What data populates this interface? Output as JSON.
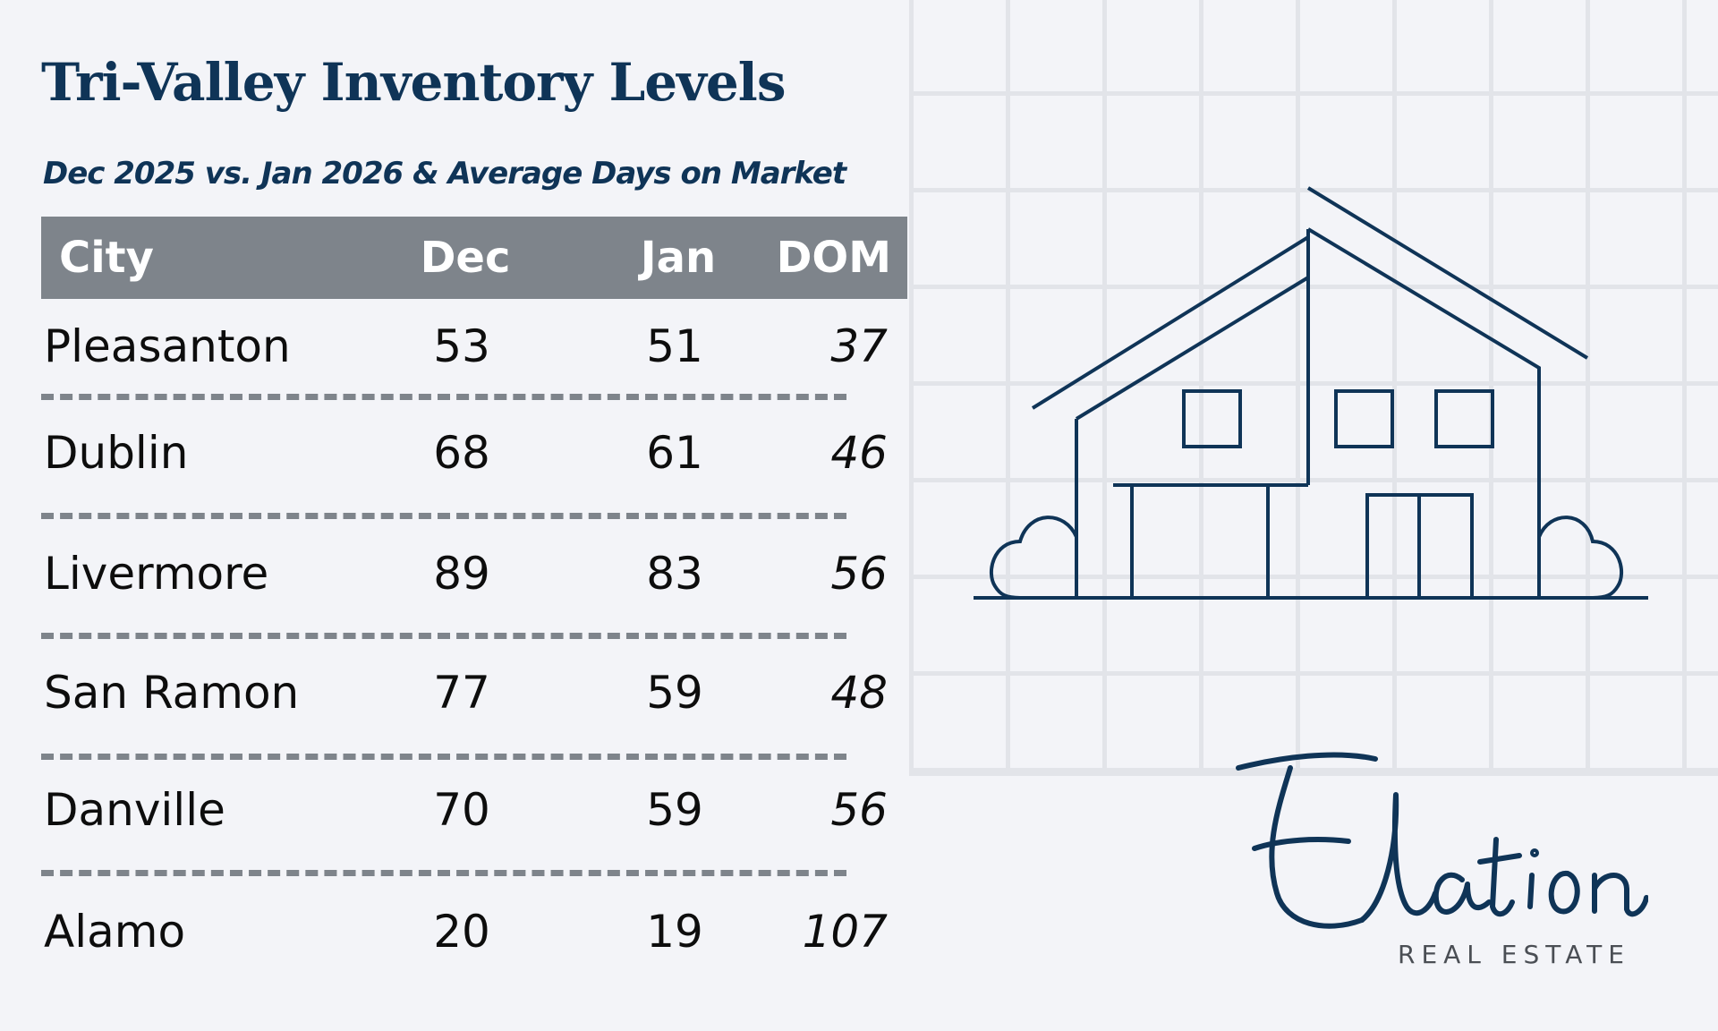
{
  "chart_data": {
    "type": "table",
    "title": "Tri-Valley Inventory Levels",
    "subtitle": "Dec 2025 vs. Jan 2026 & Average Days on Market",
    "columns": [
      "City",
      "Dec",
      "Jan",
      "DOM"
    ],
    "rows": [
      {
        "city": "Pleasanton",
        "dec": "53",
        "jan": "51",
        "dom": "37"
      },
      {
        "city": "Dublin",
        "dec": "68",
        "jan": "61",
        "dom": "46"
      },
      {
        "city": "Livermore",
        "dec": "89",
        "jan": "83",
        "dom": "56"
      },
      {
        "city": "San Ramon",
        "dec": "77",
        "jan": "59",
        "dom": "48"
      },
      {
        "city": "Danville",
        "dec": "70",
        "jan": "59",
        "dom": "56"
      },
      {
        "city": "Alamo",
        "dec": "20",
        "jan": "19",
        "dom": "107"
      }
    ]
  },
  "logo": {
    "name": "Elation",
    "tagline": "REAL ESTATE"
  },
  "colors": {
    "title": "#0f3457",
    "header_bg": "#7e848b",
    "background": "#f3f4f8",
    "illustration": "#0f3457"
  }
}
